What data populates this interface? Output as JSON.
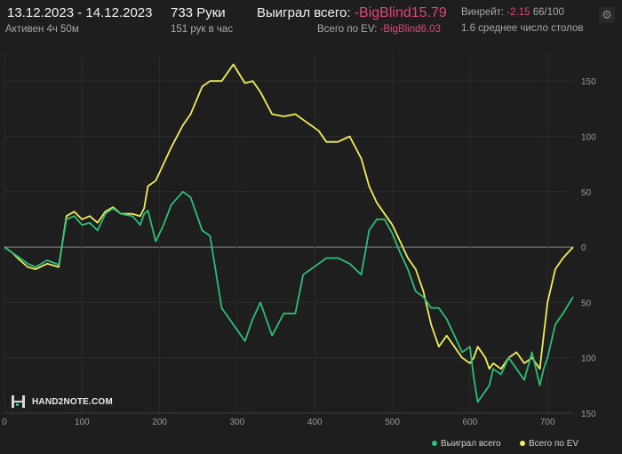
{
  "header": {
    "date_range": "13.12.2023 - 14.12.2023",
    "active": "Активен 4ч 50м",
    "hands": "733 Руки",
    "hands_per_hour": "151 рук в час",
    "won_label": "Выиграл всего:",
    "won_value": "-BigBlind15.79",
    "ev_label": "Всего по EV:",
    "ev_value": "-BigBlind6.03",
    "winrate_label": "Винрейт:",
    "winrate_value": "-2.15",
    "winrate_suffix": "66/100",
    "avg_tables": "1.6 среднее число столов"
  },
  "logo": {
    "text": "HAND2NOTE.COM"
  },
  "colors": {
    "won": "#2bbf7a",
    "ev": "#f0ee5a",
    "background": "#1e1e1e",
    "accent": "#e0457b"
  },
  "legend": {
    "won": "Выиграл всего",
    "ev": "Всего по EV"
  },
  "chart_data": {
    "type": "line",
    "x_ticks": [
      0,
      100,
      200,
      300,
      400,
      500,
      600,
      700
    ],
    "y_ticks": [
      150,
      100,
      50,
      0,
      50,
      100,
      150
    ],
    "xlim": [
      0,
      733
    ],
    "ylim": [
      -150,
      175
    ],
    "grid": true,
    "series": [
      {
        "name": "Выиграл всего",
        "color": "#2bbf7a",
        "x": [
          0,
          10,
          20,
          30,
          40,
          55,
          70,
          80,
          90,
          100,
          110,
          120,
          130,
          140,
          150,
          165,
          175,
          180,
          185,
          195,
          205,
          215,
          230,
          240,
          255,
          265,
          280,
          295,
          310,
          320,
          330,
          345,
          360,
          375,
          385,
          395,
          405,
          415,
          430,
          445,
          460,
          470,
          480,
          490,
          500,
          510,
          520,
          530,
          540,
          550,
          560,
          570,
          580,
          590,
          600,
          605,
          610,
          620,
          625,
          630,
          640,
          650,
          660,
          670,
          680,
          690,
          695,
          700,
          710,
          720,
          733
        ],
        "y": [
          0,
          -5,
          -10,
          -15,
          -18,
          -12,
          -16,
          25,
          28,
          20,
          22,
          15,
          30,
          35,
          30,
          28,
          20,
          30,
          33,
          5,
          20,
          38,
          50,
          45,
          15,
          10,
          -55,
          -70,
          -85,
          -65,
          -50,
          -80,
          -60,
          -60,
          -25,
          -20,
          -15,
          -10,
          -10,
          -15,
          -25,
          15,
          25,
          25,
          12,
          -5,
          -20,
          -40,
          -45,
          -55,
          -55,
          -65,
          -80,
          -95,
          -90,
          -118,
          -140,
          -130,
          -125,
          -110,
          -115,
          -100,
          -110,
          -120,
          -95,
          -125,
          -110,
          -100,
          -70,
          -60,
          -45
        ]
      },
      {
        "name": "Всего по EV",
        "color": "#f0ee5a",
        "x": [
          0,
          10,
          20,
          30,
          40,
          55,
          70,
          80,
          90,
          100,
          110,
          120,
          130,
          140,
          150,
          165,
          175,
          180,
          185,
          195,
          205,
          215,
          230,
          240,
          255,
          265,
          280,
          295,
          310,
          320,
          330,
          345,
          360,
          375,
          385,
          395,
          405,
          415,
          430,
          445,
          460,
          470,
          480,
          490,
          500,
          510,
          520,
          530,
          540,
          550,
          560,
          570,
          580,
          590,
          600,
          605,
          610,
          620,
          625,
          630,
          640,
          650,
          660,
          670,
          680,
          690,
          695,
          700,
          710,
          720,
          733
        ],
        "y": [
          0,
          -5,
          -12,
          -18,
          -20,
          -15,
          -18,
          28,
          32,
          25,
          28,
          22,
          32,
          36,
          30,
          30,
          28,
          35,
          55,
          60,
          75,
          90,
          110,
          120,
          145,
          150,
          150,
          165,
          148,
          150,
          140,
          120,
          118,
          120,
          115,
          110,
          105,
          95,
          95,
          100,
          80,
          55,
          40,
          30,
          20,
          5,
          -10,
          -20,
          -40,
          -70,
          -90,
          -80,
          -90,
          -100,
          -105,
          -100,
          -90,
          -100,
          -110,
          -105,
          -110,
          -100,
          -95,
          -105,
          -100,
          -110,
          -80,
          -50,
          -20,
          -10,
          0
        ]
      }
    ]
  }
}
